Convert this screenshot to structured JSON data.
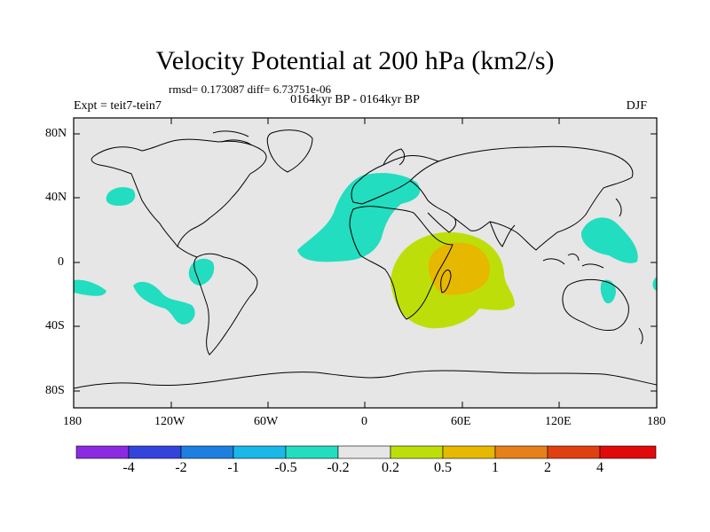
{
  "title": "Velocity Potential at 200 hPa (km2/s)",
  "stats": "rmsd= 0.173087 diff= 6.73751e-06",
  "left_label": "Expt = teit7-tein7",
  "center_label": "0164kyr BP - 0164kyr BP",
  "right_label": "DJF",
  "y_ticks": [
    "80N",
    "40N",
    "0",
    "40S",
    "80S"
  ],
  "x_ticks": [
    "180",
    "120W",
    "60W",
    "0",
    "60E",
    "120E",
    "180"
  ],
  "colorbar": {
    "colors": [
      "#8a2be2",
      "#3344dd",
      "#1e7fe0",
      "#1ab8e8",
      "#22ddc0",
      "#e6e6e6",
      "#bede0a",
      "#e6b800",
      "#e6801a",
      "#e04010",
      "#e00a0a"
    ],
    "labels": [
      "-4",
      "-2",
      "-1",
      "-0.5",
      "-0.2",
      "0.2",
      "0.5",
      "1",
      "2",
      "4"
    ]
  },
  "colors": {
    "land_outline": "#000000",
    "background": "#e6e6e6"
  }
}
